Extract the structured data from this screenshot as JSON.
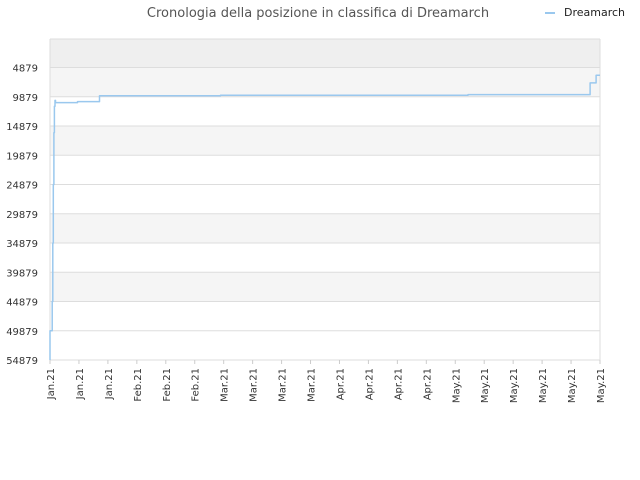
{
  "chart_data": {
    "type": "line",
    "title": "Cronologia della posizione in classifica di Dreamarch",
    "xlabel": "",
    "ylabel": "",
    "y_inverted": true,
    "ylim": [
      54879,
      0
    ],
    "yticks": [
      "4879",
      "9879",
      "14879",
      "19879",
      "24879",
      "29879",
      "34879",
      "39879",
      "44879",
      "49879",
      "54879"
    ],
    "x_tick_labels": [
      "Jan.21",
      "Jan.21",
      "Jan.21",
      "Feb.21",
      "Feb.21",
      "Feb.21",
      "Mar.21",
      "Mar.21",
      "Mar.21",
      "Mar.21",
      "Apr.21",
      "Apr.21",
      "Apr.21",
      "Apr.21",
      "May.21",
      "May.21",
      "May.21",
      "May.21",
      "May.21",
      "May.21"
    ],
    "x_range": [
      0,
      1
    ],
    "grid": true,
    "legend_position": "top-right",
    "series": [
      {
        "name": "Dreamarch",
        "color": "#9ac8ee",
        "x": [
          0.0,
          0.0,
          0.004,
          0.004,
          0.005,
          0.005,
          0.006,
          0.006,
          0.007,
          0.007,
          0.008,
          0.008,
          0.009,
          0.009,
          0.01,
          0.01,
          0.05,
          0.05,
          0.09,
          0.09,
          0.31,
          0.31,
          0.76,
          0.76,
          0.982,
          0.982,
          0.986,
          0.986,
          0.993,
          0.993,
          1.0
        ],
        "y": [
          54879,
          49879,
          49879,
          44879,
          44879,
          34879,
          34879,
          24879,
          24879,
          16000,
          16000,
          11500,
          11500,
          10500,
          10500,
          10879,
          10879,
          10700,
          10700,
          9700,
          9700,
          9600,
          9600,
          9500,
          9500,
          7500,
          7500,
          7500,
          7500,
          6200,
          6200
        ]
      }
    ],
    "colors": {
      "band_dark": "#efefef",
      "band_light": "#f5f5f5",
      "grid": "#dddddd",
      "title": "#555555"
    }
  }
}
